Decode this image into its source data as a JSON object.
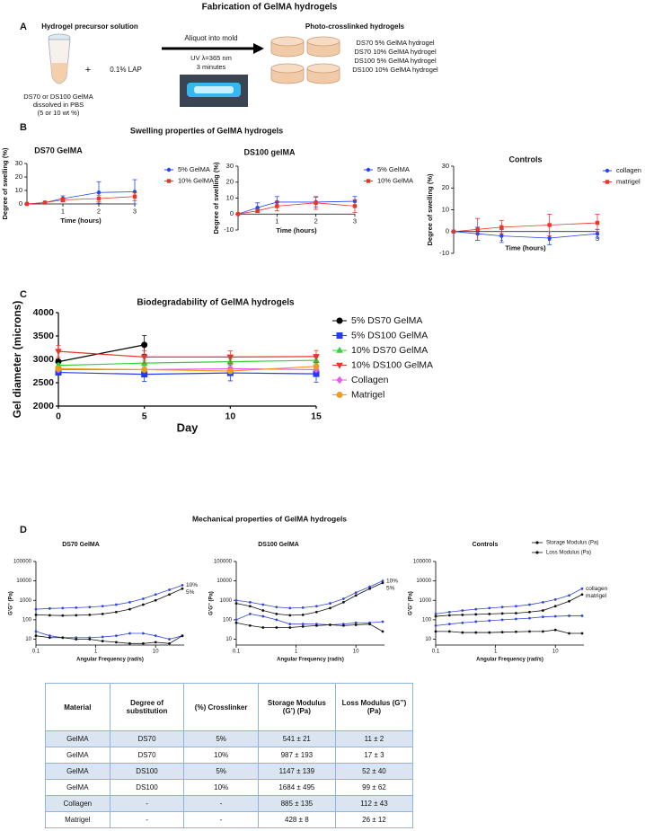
{
  "panel_a": {
    "label": "A",
    "title": "Fabrication of GelMA hydrogels",
    "precursor_heading": "Hydrogel precursor solution",
    "precursor_lines": [
      "DS70 or DS100 GelMA",
      "dissolved in PBS",
      "(5 or 10 wt %)"
    ],
    "plus": "+",
    "lap": "0.1% LAP",
    "arrow_label": "Aliquot into mold",
    "uv_lines": [
      "UV λ=365 nm",
      "3 minutes"
    ],
    "result_heading": "Photo-crosslinked hydrogels",
    "result_lines": [
      "DS70 5% GelMA hydrogel",
      "DS70 10% GelMA hydrogel",
      "DS100 5% GelMA hydrogel",
      "DS100 10% GelMA hydrogel"
    ]
  },
  "sections": {
    "b": {
      "label": "B",
      "title": "Swelling properties of GelMA hydrogels"
    },
    "c": {
      "label": "C"
    },
    "d": {
      "label": "D",
      "title": "Mechanical properties of GelMA hydrogels"
    }
  },
  "chart_data": [
    {
      "type": "line",
      "title": "DS70 GelMA",
      "x_label": "Time (hours)",
      "y_label": "Degree of swelling (%)",
      "x": [
        0,
        0.5,
        1,
        2,
        3
      ],
      "xlim": [
        0,
        3
      ],
      "ylim": [
        0,
        30
      ],
      "xticks": [
        1,
        2,
        3
      ],
      "yticks": [
        0,
        10,
        20,
        30
      ],
      "legend": "right",
      "series": [
        {
          "name": "5% GelMA",
          "color": "#2546f0",
          "marker": "circle",
          "values": [
            0,
            1,
            4,
            8.5,
            9
          ],
          "errors": [
            0,
            0.5,
            2,
            8,
            9
          ]
        },
        {
          "name": "10% GelMA",
          "color": "#e8352a",
          "marker": "square",
          "values": [
            0,
            1,
            3,
            4,
            5.5
          ],
          "errors": [
            0,
            0.5,
            1.5,
            2.5,
            3
          ]
        }
      ]
    },
    {
      "type": "line",
      "title": "DS100 gelMA",
      "x_label": "Time (hours)",
      "y_label": "Degree of swelling (%)",
      "x": [
        0,
        0.5,
        1,
        2,
        3
      ],
      "xlim": [
        0,
        3
      ],
      "ylim": [
        -10,
        30
      ],
      "xticks": [
        1,
        2,
        3
      ],
      "yticks": [
        -10,
        0,
        10,
        20,
        30
      ],
      "legend": "right",
      "series": [
        {
          "name": "5% GelMA",
          "color": "#2546f0",
          "marker": "circle",
          "values": [
            0,
            4,
            7.5,
            7.5,
            8
          ],
          "errors": [
            0,
            3,
            3.5,
            3,
            3
          ]
        },
        {
          "name": "10% GelMA",
          "color": "#e8352a",
          "marker": "square",
          "values": [
            0,
            2,
            5,
            7,
            5
          ],
          "errors": [
            0,
            1,
            3,
            4,
            4
          ]
        }
      ]
    },
    {
      "type": "line",
      "title": "Controls",
      "x_label": "Time (hours)",
      "y_label": "Degree of swelling (%)",
      "x": [
        0,
        0.5,
        1,
        2,
        3
      ],
      "xlim": [
        0,
        3
      ],
      "ylim": [
        -10,
        30
      ],
      "xticks": [
        1,
        2,
        3
      ],
      "yticks": [
        -10,
        0,
        10,
        20,
        30
      ],
      "legend": "right",
      "series": [
        {
          "name": "collagen",
          "color": "#2546f0",
          "marker": "circle",
          "values": [
            0,
            -1,
            -2,
            -3,
            -1
          ],
          "errors": [
            0,
            3,
            3,
            3,
            2
          ]
        },
        {
          "name": "matrigel",
          "color": "#e8352a",
          "marker": "square",
          "values": [
            0,
            1,
            2,
            3,
            4
          ],
          "errors": [
            0,
            5,
            3,
            5,
            4
          ]
        }
      ]
    },
    {
      "type": "line",
      "title": "Biodegradability of GelMA hydrogels",
      "x_label": "Day",
      "y_label": "Gel diameter (microns)",
      "x": [
        0,
        5,
        10,
        15
      ],
      "xlim": [
        0,
        15
      ],
      "ylim": [
        2000,
        4000
      ],
      "xticks": [
        0,
        5,
        10,
        15
      ],
      "yticks": [
        2000,
        2500,
        3000,
        3500,
        4000
      ],
      "legend": "right",
      "series": [
        {
          "name": "5% DS70 GelMA",
          "color": "#000000",
          "marker": "circle",
          "values": [
            2950,
            3310,
            null,
            null
          ],
          "errors": [
            0,
            200,
            null,
            null
          ]
        },
        {
          "name": "5% DS100 GelMA",
          "color": "#1f3df5",
          "marker": "square",
          "values": [
            2720,
            2680,
            2710,
            2690
          ],
          "errors": [
            50,
            150,
            170,
            180
          ]
        },
        {
          "name": "10% DS70 GelMA",
          "color": "#35d13c",
          "marker": "triangle",
          "values": [
            2870,
            2920,
            2950,
            2980
          ],
          "errors": [
            40,
            60,
            60,
            60
          ]
        },
        {
          "name": "10% DS100 GelMA",
          "color": "#e8352a",
          "marker": "triangle-down",
          "values": [
            3170,
            3050,
            3050,
            3060
          ],
          "errors": [
            130,
            130,
            130,
            130
          ]
        },
        {
          "name": "Collagen",
          "color": "#e85ae8",
          "marker": "diamond",
          "values": [
            2780,
            2780,
            2800,
            2780
          ],
          "errors": [
            40,
            40,
            40,
            40
          ]
        },
        {
          "name": "Matrigel",
          "color": "#f39a1d",
          "marker": "circle",
          "values": [
            2800,
            2780,
            2750,
            2850
          ],
          "errors": [
            40,
            40,
            40,
            40
          ]
        }
      ]
    },
    {
      "type": "line",
      "title": "DS70 GelMA",
      "x_label": "Angular Frequency (rad/s)",
      "y_label": "G'G'' (Pa)",
      "xscale": "log",
      "yscale": "log",
      "series_labels": "end",
      "x": [
        0.1,
        0.17,
        0.28,
        0.47,
        0.79,
        1.3,
        2.2,
        3.7,
        6.2,
        10,
        17,
        28
      ],
      "xlim": [
        0.1,
        30
      ],
      "ylim": [
        5,
        100000
      ],
      "xticks": [
        0.1,
        1,
        10
      ],
      "yticks": [
        10,
        100,
        1000,
        10000,
        100000
      ],
      "series": [
        {
          "name": "10%",
          "color": "#3446d8",
          "marker": "dot",
          "values": [
            350,
            380,
            400,
            420,
            450,
            500,
            600,
            800,
            1200,
            2000,
            3500,
            6000
          ]
        },
        {
          "name": "5%",
          "color": "#111111",
          "marker": "dot",
          "values": [
            180,
            170,
            165,
            170,
            180,
            200,
            250,
            350,
            600,
            1000,
            2000,
            4000
          ]
        },
        {
          "color": "#3446d8",
          "marker": "dot",
          "values": [
            25,
            15,
            12,
            12,
            12,
            13,
            15,
            20,
            20,
            15,
            10,
            15
          ]
        },
        {
          "color": "#111111",
          "marker": "dot",
          "values": [
            15,
            12,
            12,
            10,
            10,
            8,
            7,
            6,
            6,
            7,
            6,
            15
          ]
        }
      ]
    },
    {
      "type": "line",
      "title": "DS100 GelMA",
      "x_label": "Angular Frequency (rad/s)",
      "y_label": "G'G'' (Pa)",
      "xscale": "log",
      "yscale": "log",
      "series_labels": "end",
      "x": [
        0.1,
        0.17,
        0.28,
        0.47,
        0.79,
        1.3,
        2.2,
        3.7,
        6.2,
        10,
        17,
        28
      ],
      "xlim": [
        0.1,
        30
      ],
      "ylim": [
        5,
        100000
      ],
      "xticks": [
        0.1,
        1,
        10
      ],
      "yticks": [
        10,
        100,
        1000,
        10000,
        100000
      ],
      "series": [
        {
          "name": "10%",
          "color": "#3446d8",
          "marker": "dot",
          "values": [
            1000,
            800,
            600,
            450,
            400,
            420,
            500,
            700,
            1200,
            2500,
            5000,
            10000
          ]
        },
        {
          "name": "5%",
          "color": "#111111",
          "marker": "dot",
          "values": [
            700,
            500,
            300,
            200,
            170,
            180,
            250,
            400,
            800,
            1800,
            4000,
            8000
          ]
        },
        {
          "color": "#3446d8",
          "marker": "dot",
          "values": [
            100,
            200,
            150,
            100,
            60,
            60,
            60,
            55,
            60,
            70,
            70,
            80
          ]
        },
        {
          "color": "#111111",
          "marker": "dot",
          "values": [
            70,
            50,
            40,
            40,
            40,
            45,
            50,
            55,
            50,
            55,
            60,
            25
          ]
        }
      ]
    },
    {
      "type": "line",
      "title": "Controls",
      "x_label": "Angular Frequency (rad/s)",
      "y_label": "G'G'' (Pa)",
      "xscale": "log",
      "yscale": "log",
      "series_labels": "end",
      "legend_entries": [
        "Storage Modulus (Pa)",
        "Loss Modulus (Pa)"
      ],
      "x": [
        0.1,
        0.17,
        0.28,
        0.47,
        0.79,
        1.3,
        2.2,
        3.7,
        6.2,
        10,
        17,
        28
      ],
      "xlim": [
        0.1,
        30
      ],
      "ylim": [
        5,
        100000
      ],
      "xticks": [
        0.1,
        1,
        10
      ],
      "yticks": [
        10,
        100,
        1000,
        10000,
        100000
      ],
      "series": [
        {
          "name": "collagen",
          "color": "#3446d8",
          "marker": "dot",
          "values": [
            200,
            250,
            300,
            350,
            400,
            450,
            500,
            600,
            800,
            1100,
            1800,
            4000
          ]
        },
        {
          "name": "matrigel",
          "color": "#111111",
          "marker": "dot",
          "values": [
            150,
            170,
            180,
            190,
            200,
            210,
            220,
            250,
            300,
            500,
            900,
            2000
          ]
        },
        {
          "color": "#3446d8",
          "marker": "dot",
          "values": [
            50,
            60,
            70,
            80,
            90,
            100,
            110,
            120,
            140,
            150,
            160,
            160
          ]
        },
        {
          "color": "#111111",
          "marker": "dot",
          "values": [
            25,
            25,
            22,
            22,
            22,
            23,
            24,
            25,
            25,
            30,
            20,
            20
          ]
        }
      ]
    }
  ],
  "table": {
    "header": [
      "Material",
      "Degree of substitution",
      "(%) Crosslinker",
      "Storage Modulus (G’) (Pa)",
      "Loss Modulus (G’’) (Pa)"
    ],
    "rows": [
      [
        "GelMA",
        "DS70",
        "5%",
        "541 ± 21",
        "11 ± 2"
      ],
      [
        "GelMA",
        "DS70",
        "10%",
        "987 ± 193",
        "17 ± 3"
      ],
      [
        "GelMA",
        "DS100",
        "5%",
        "1147 ± 139",
        "52 ± 40"
      ],
      [
        "GelMA",
        "DS100",
        "10%",
        "1684 ± 495",
        "99 ± 62"
      ],
      [
        "Collagen",
        "-",
        "-",
        "885 ± 135",
        "112 ± 43"
      ],
      [
        "Matrigel",
        "-",
        "-",
        "428 ± 8",
        "26 ± 12"
      ]
    ]
  }
}
